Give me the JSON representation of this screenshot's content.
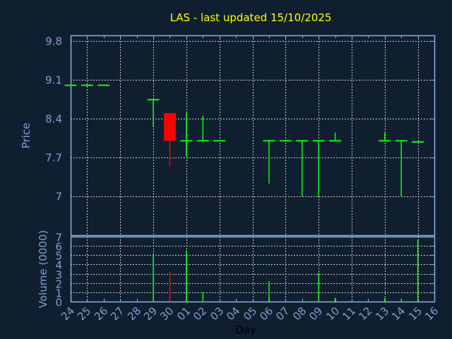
{
  "chart_data": [
    {
      "type": "candlestick",
      "title": "LAS - last updated 15/10/2025",
      "ylabel": "Price",
      "xlabel": "Day",
      "ylim": [
        6.3,
        9.9
      ],
      "yticks": [
        "9.8",
        "9.1",
        "8.4",
        "7.7",
        "7"
      ],
      "ytick_values": [
        9.8,
        9.1,
        8.4,
        7.7,
        7.0
      ],
      "xtick_labels": [
        "24",
        "25",
        "26",
        "27",
        "28",
        "29",
        "30",
        "01",
        "02",
        "03",
        "04",
        "05",
        "06",
        "07",
        "08",
        "09",
        "10",
        "11",
        "12",
        "13",
        "14",
        "15",
        "16"
      ],
      "grid": true,
      "colors": {
        "up": "#00ff00",
        "down": "#ff0000",
        "background": "#0f1f30",
        "axis": "#8fb0d8",
        "title": "#ffff00",
        "labels": "#7f9fcf"
      },
      "candles": [
        {
          "day": "24",
          "open": 9.0,
          "high": 9.0,
          "low": 9.0,
          "close": 9.0
        },
        {
          "day": "25",
          "open": 9.0,
          "high": 9.0,
          "low": 9.0,
          "close": 9.0
        },
        {
          "day": "26",
          "open": 9.0,
          "high": 9.0,
          "low": 9.0,
          "close": 9.0
        },
        {
          "day": "29",
          "open": 8.74,
          "high": 8.74,
          "low": 8.25,
          "close": 8.74
        },
        {
          "day": "30",
          "open": 8.5,
          "high": 8.5,
          "low": 7.54,
          "close": 8.0
        },
        {
          "day": "01",
          "open": 8.0,
          "high": 8.5,
          "low": 7.71,
          "close": 8.0
        },
        {
          "day": "02",
          "open": 8.0,
          "high": 8.45,
          "low": 8.0,
          "close": 8.0
        },
        {
          "day": "03",
          "open": 8.0,
          "high": 8.0,
          "low": 8.0,
          "close": 8.0
        },
        {
          "day": "06",
          "open": 8.0,
          "high": 8.0,
          "low": 7.23,
          "close": 8.0
        },
        {
          "day": "07",
          "open": 8.0,
          "high": 8.0,
          "low": 8.0,
          "close": 8.0
        },
        {
          "day": "08",
          "open": 8.0,
          "high": 8.0,
          "low": 7.0,
          "close": 8.0
        },
        {
          "day": "09",
          "open": 8.0,
          "high": 8.0,
          "low": 7.0,
          "close": 8.0
        },
        {
          "day": "10",
          "open": 8.0,
          "high": 8.15,
          "low": 8.0,
          "close": 8.0
        },
        {
          "day": "13",
          "open": 8.0,
          "high": 8.15,
          "low": 8.0,
          "close": 8.0
        },
        {
          "day": "14",
          "open": 8.0,
          "high": 8.0,
          "low": 7.0,
          "close": 8.0
        },
        {
          "day": "15",
          "open": 7.98,
          "high": 7.98,
          "low": 7.98,
          "close": 7.98
        }
      ]
    },
    {
      "type": "bar",
      "ylabel": "Volume (0000)",
      "ylim": [
        0,
        7
      ],
      "yticks": [
        "0",
        "1",
        "2",
        "3",
        "4",
        "5",
        "6",
        "7"
      ],
      "grid": true,
      "bars": [
        {
          "day": "29",
          "value": 5.2,
          "color": "#00ff00"
        },
        {
          "day": "30",
          "value": 3.2,
          "color": "#ff0000"
        },
        {
          "day": "01",
          "value": 5.5,
          "color": "#00ff00"
        },
        {
          "day": "02",
          "value": 1.0,
          "color": "#00ff00"
        },
        {
          "day": "06",
          "value": 2.2,
          "color": "#00ff00"
        },
        {
          "day": "09",
          "value": 3.1,
          "color": "#00ff00"
        },
        {
          "day": "10",
          "value": 0.4,
          "color": "#00ff00"
        },
        {
          "day": "13",
          "value": 0.4,
          "color": "#00ff00"
        },
        {
          "day": "14",
          "value": 0.3,
          "color": "#00ff00"
        },
        {
          "day": "15",
          "value": 6.7,
          "color": "#00ff00"
        }
      ]
    }
  ]
}
